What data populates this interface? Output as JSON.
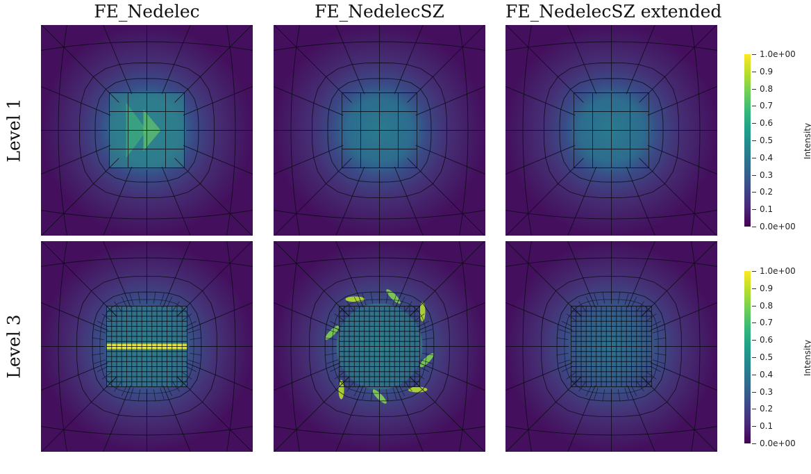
{
  "columns": [
    "FE_Nedelec",
    "FE_NedelecSZ",
    "FE_NedelecSZ extended"
  ],
  "rows": [
    "Level 1",
    "Level 3"
  ],
  "colorbar": {
    "title": "Intensity",
    "labels": [
      "1.0e+00",
      "0.9",
      "0.8",
      "0.7",
      "0.6",
      "0.5",
      "0.4",
      "0.3",
      "0.2",
      "0.1",
      "0.0e+00"
    ],
    "range": [
      0,
      1
    ],
    "colormap": "viridis"
  }
}
